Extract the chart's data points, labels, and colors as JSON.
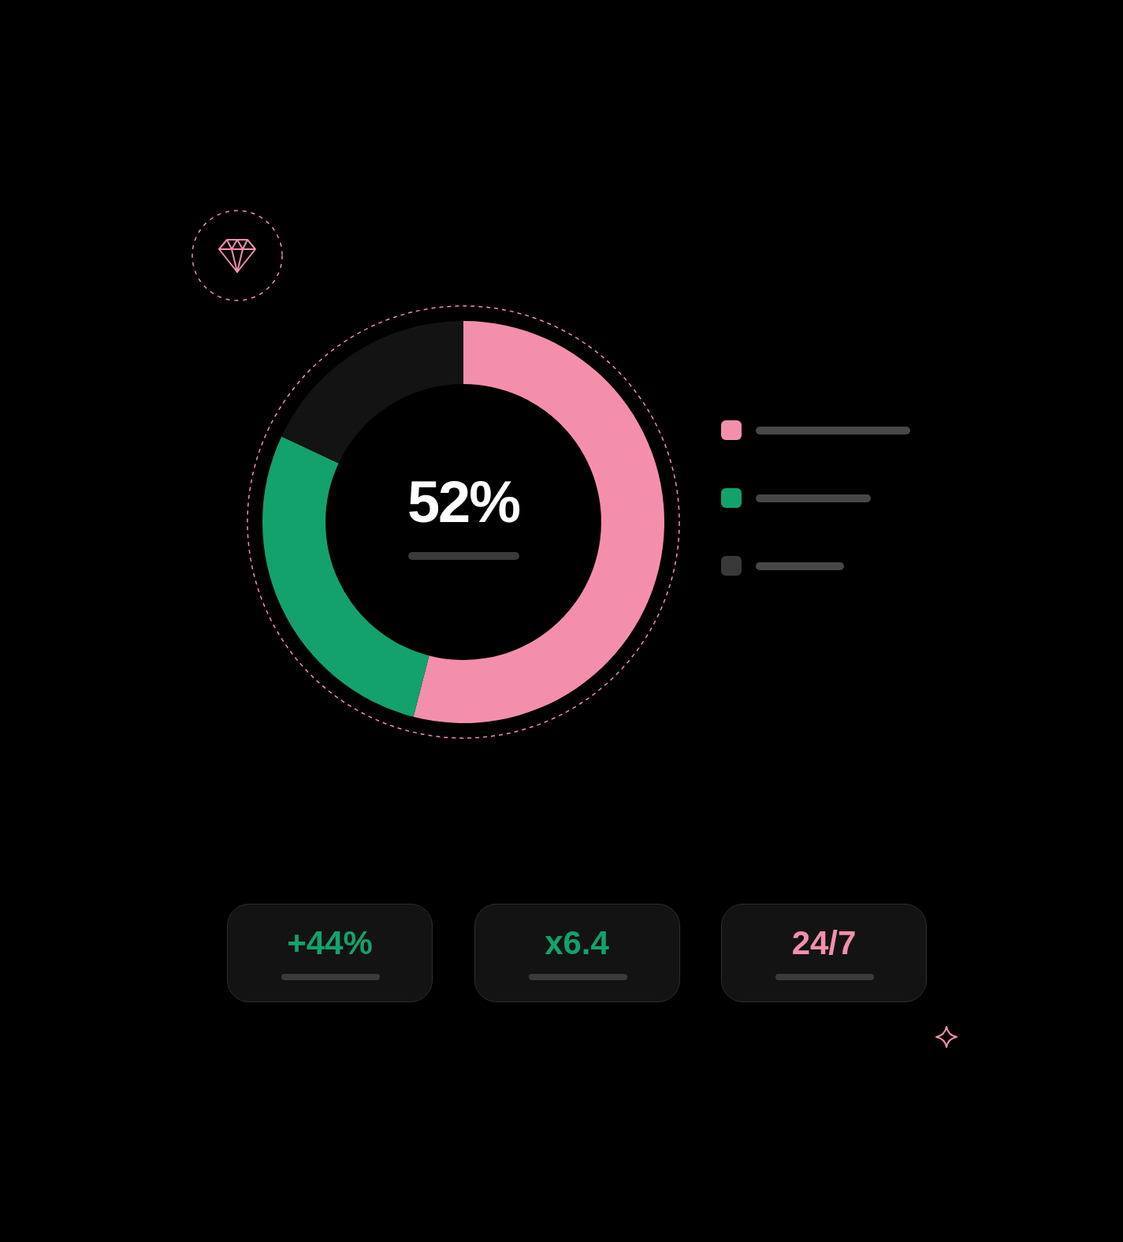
{
  "chart_data": [
    {
      "type": "donut",
      "categories": [
        null,
        null,
        null
      ],
      "values": [
        54,
        28,
        18
      ],
      "colors": [
        "#f48fab",
        "#13a26b",
        "#131313"
      ],
      "annotations": [
        "52%"
      ]
    },
    {
      "type": "other",
      "annotations": [
        "+44%",
        "x6.4",
        "24/7"
      ],
      "colors": [
        "#13a26b",
        "#13a26b",
        "#f48fab"
      ]
    }
  ]
}
